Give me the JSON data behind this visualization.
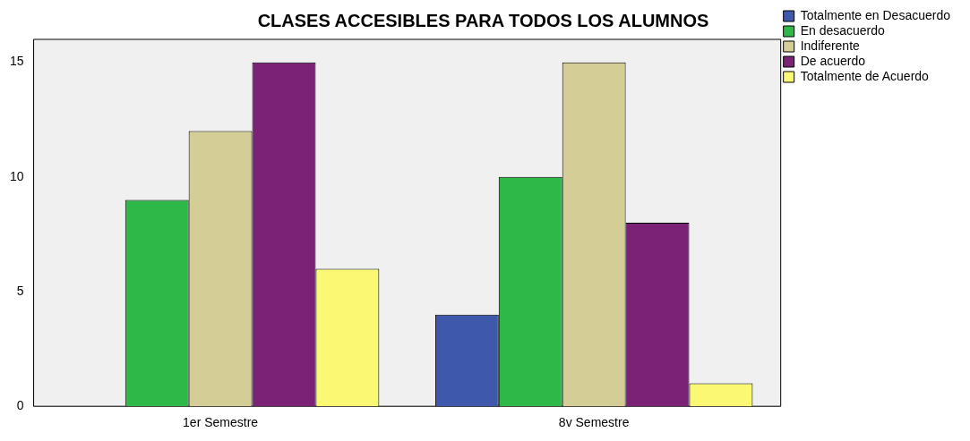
{
  "chart_data": {
    "type": "bar",
    "title": "CLASES ACCESIBLES PARA TODOS LOS ALUMNOS",
    "categories": [
      "1er Semestre",
      "8v Semestre"
    ],
    "series": [
      {
        "name": "Totalmente en Desacuerdo",
        "color": "#3e58ac",
        "values": [
          0,
          4
        ]
      },
      {
        "name": "En desacuerdo",
        "color": "#2eb848",
        "values": [
          9,
          10
        ]
      },
      {
        "name": "Indiferente",
        "color": "#d4ce96",
        "values": [
          12,
          15
        ]
      },
      {
        "name": "De acuerdo",
        "color": "#7b2276",
        "values": [
          15,
          8
        ]
      },
      {
        "name": "Totalmente de Acuerdo",
        "color": "#fbf873",
        "values": [
          6,
          1
        ]
      }
    ],
    "ylim": [
      0,
      16
    ],
    "yticks": [
      0,
      5,
      10,
      15
    ],
    "grid": false,
    "legend": "top right"
  }
}
